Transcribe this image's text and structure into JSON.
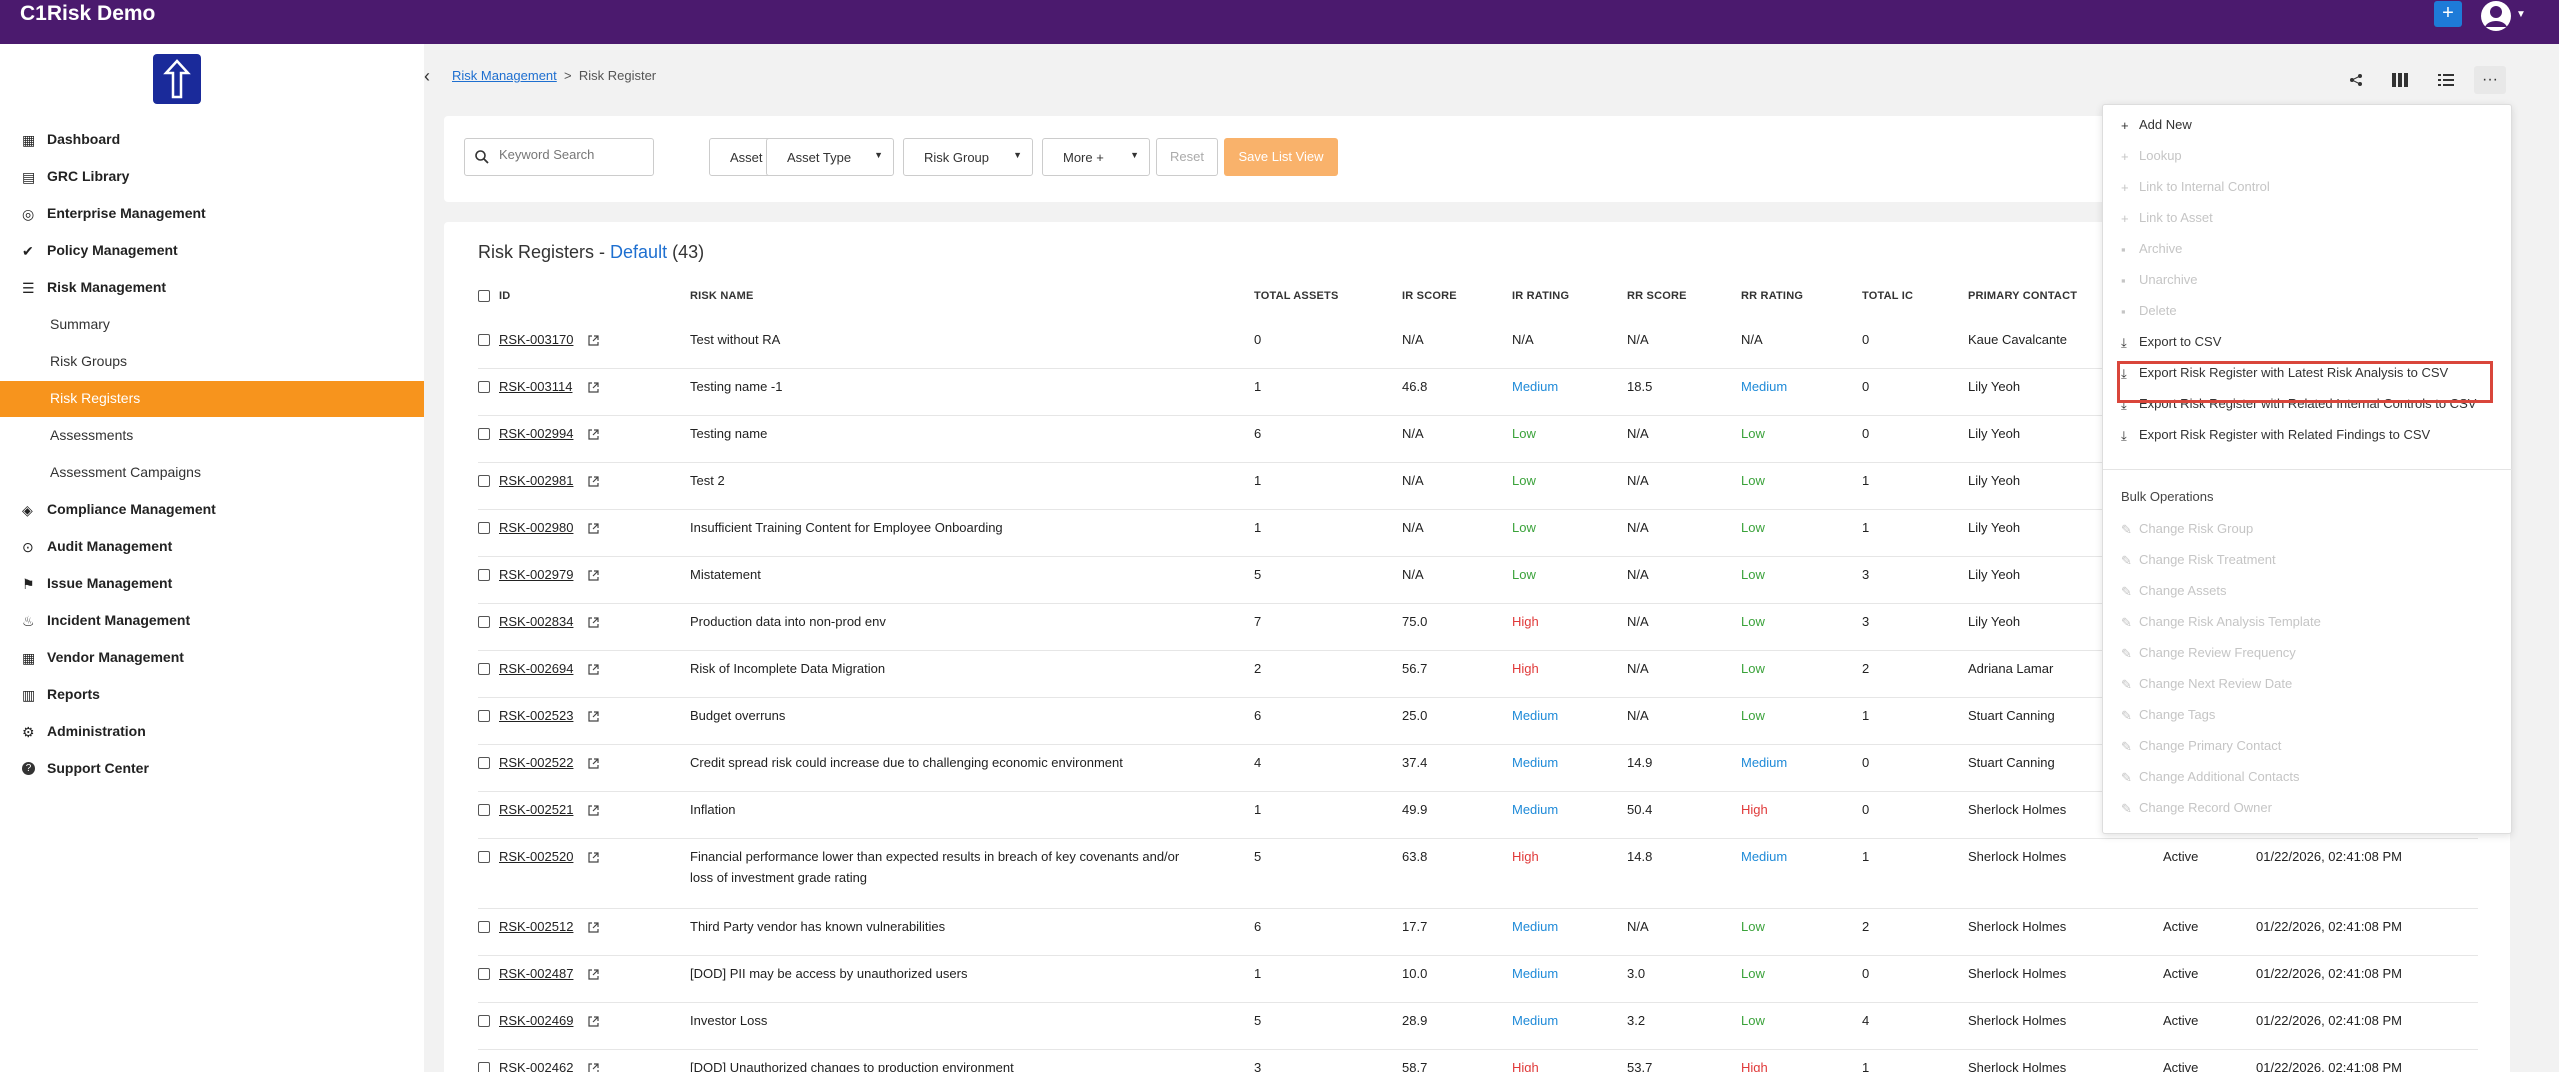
{
  "app": {
    "title": "C1Risk Demo"
  },
  "header": {
    "add_label": "+"
  },
  "sidebar": {
    "nav": [
      {
        "label": "Dashboard"
      },
      {
        "label": "GRC Library"
      },
      {
        "label": "Enterprise Management"
      },
      {
        "label": "Policy Management"
      },
      {
        "label": "Risk Management"
      }
    ],
    "risk_sub": [
      {
        "label": "Summary"
      },
      {
        "label": "Risk Groups"
      },
      {
        "label": "Risk Registers"
      },
      {
        "label": "Assessments"
      },
      {
        "label": "Assessment Campaigns"
      }
    ],
    "nav2": [
      {
        "label": "Compliance Management"
      },
      {
        "label": "Audit Management"
      },
      {
        "label": "Issue Management"
      },
      {
        "label": "Incident Management"
      },
      {
        "label": "Vendor Management"
      },
      {
        "label": "Reports"
      },
      {
        "label": "Administration"
      },
      {
        "label": "Support Center"
      }
    ]
  },
  "breadcrumb": {
    "parent": "Risk Management",
    "separator": ">",
    "current": "Risk Register"
  },
  "filters": {
    "search_placeholder": "Keyword Search",
    "asset": "Asset",
    "asset_type": "Asset Type",
    "risk_group": "Risk Group",
    "more": "More +",
    "reset": "Reset",
    "save_list_view": "Save List View"
  },
  "table": {
    "title_prefix": "Risk Registers - ",
    "view_name": "Default",
    "count": " (43)",
    "headers": {
      "id": "ID",
      "risk_name": "RISK NAME",
      "total_assets": "TOTAL ASSETS",
      "ir_score": "IR SCORE",
      "ir_rating": "IR RATING",
      "rr_score": "RR SCORE",
      "rr_rating": "RR RATING",
      "total_ic": "TOTAL IC",
      "primary_contact": "PRIMARY CONTACT"
    },
    "rows": [
      {
        "id": "RSK-003170",
        "name": "Test without RA",
        "name2": "",
        "assets": "0",
        "ir_score": "N/A",
        "ir_rating": "N/A",
        "rr_score": "N/A",
        "rr_rating": "N/A",
        "ic": "0",
        "contact": "Kaue Cavalcante",
        "status": "",
        "date": ""
      },
      {
        "id": "RSK-003114",
        "name": "Testing name -1",
        "name2": "",
        "assets": "1",
        "ir_score": "46.8",
        "ir_rating": "Medium",
        "rr_score": "18.5",
        "rr_rating": "Medium",
        "ic": "0",
        "contact": "Lily Yeoh",
        "status": "",
        "date": ""
      },
      {
        "id": "RSK-002994",
        "name": "Testing name",
        "name2": "",
        "assets": "6",
        "ir_score": "N/A",
        "ir_rating": "Low",
        "rr_score": "N/A",
        "rr_rating": "Low",
        "ic": "0",
        "contact": "Lily Yeoh",
        "status": "",
        "date": ""
      },
      {
        "id": "RSK-002981",
        "name": "Test 2",
        "name2": "",
        "assets": "1",
        "ir_score": "N/A",
        "ir_rating": "Low",
        "rr_score": "N/A",
        "rr_rating": "Low",
        "ic": "1",
        "contact": "Lily Yeoh",
        "status": "",
        "date": ""
      },
      {
        "id": "RSK-002980",
        "name": "Insufficient Training Content for Employee Onboarding",
        "name2": "",
        "assets": "1",
        "ir_score": "N/A",
        "ir_rating": "Low",
        "rr_score": "N/A",
        "rr_rating": "Low",
        "ic": "1",
        "contact": "Lily Yeoh",
        "status": "",
        "date": ""
      },
      {
        "id": "RSK-002979",
        "name": "Mistatement",
        "name2": "",
        "assets": "5",
        "ir_score": "N/A",
        "ir_rating": "Low",
        "rr_score": "N/A",
        "rr_rating": "Low",
        "ic": "3",
        "contact": "Lily Yeoh",
        "status": "",
        "date": ""
      },
      {
        "id": "RSK-002834",
        "name": "Production data into non-prod env",
        "name2": "",
        "assets": "7",
        "ir_score": "75.0",
        "ir_rating": "High",
        "rr_score": "N/A",
        "rr_rating": "Low",
        "ic": "3",
        "contact": "Lily Yeoh",
        "status": "",
        "date": ""
      },
      {
        "id": "RSK-002694",
        "name": "Risk of Incomplete Data Migration",
        "name2": "",
        "assets": "2",
        "ir_score": "56.7",
        "ir_rating": "High",
        "rr_score": "N/A",
        "rr_rating": "Low",
        "ic": "2",
        "contact": "Adriana Lamar",
        "status": "",
        "date": ""
      },
      {
        "id": "RSK-002523",
        "name": "Budget overruns",
        "name2": "",
        "assets": "6",
        "ir_score": "25.0",
        "ir_rating": "Medium",
        "rr_score": "N/A",
        "rr_rating": "Low",
        "ic": "1",
        "contact": "Stuart Canning",
        "status": "",
        "date": ""
      },
      {
        "id": "RSK-002522",
        "name": "Credit spread risk could increase due to challenging economic environment",
        "name2": "",
        "assets": "4",
        "ir_score": "37.4",
        "ir_rating": "Medium",
        "rr_score": "14.9",
        "rr_rating": "Medium",
        "ic": "0",
        "contact": "Stuart Canning",
        "status": "",
        "date": ""
      },
      {
        "id": "RSK-002521",
        "name": "Inflation",
        "name2": "",
        "assets": "1",
        "ir_score": "49.9",
        "ir_rating": "Medium",
        "rr_score": "50.4",
        "rr_rating": "High",
        "ic": "0",
        "contact": "Sherlock Holmes",
        "status": "",
        "date": ""
      },
      {
        "id": "RSK-002520",
        "name": "Financial performance lower than expected results in breach of key covenants and/or",
        "name2": "loss of investment grade rating",
        "assets": "5",
        "ir_score": "63.8",
        "ir_rating": "High",
        "rr_score": "14.8",
        "rr_rating": "Medium",
        "ic": "1",
        "contact": "Sherlock Holmes",
        "status": "Active",
        "date": "01/22/2026, 02:41:08 PM"
      },
      {
        "id": "RSK-002512",
        "name": "Third Party vendor has known vulnerabilities",
        "name2": "",
        "assets": "6",
        "ir_score": "17.7",
        "ir_rating": "Medium",
        "rr_score": "N/A",
        "rr_rating": "Low",
        "ic": "2",
        "contact": "Sherlock Holmes",
        "status": "Active",
        "date": "01/22/2026, 02:41:08 PM"
      },
      {
        "id": "RSK-002487",
        "name": "[DOD] PII may be access by unauthorized users",
        "name2": "",
        "assets": "1",
        "ir_score": "10.0",
        "ir_rating": "Medium",
        "rr_score": "3.0",
        "rr_rating": "Low",
        "ic": "0",
        "contact": "Sherlock Holmes",
        "status": "Active",
        "date": "01/22/2026, 02:41:08 PM"
      },
      {
        "id": "RSK-002469",
        "name": "Investor Loss",
        "name2": "",
        "assets": "5",
        "ir_score": "28.9",
        "ir_rating": "Medium",
        "rr_score": "3.2",
        "rr_rating": "Low",
        "ic": "4",
        "contact": "Sherlock Holmes",
        "status": "Active",
        "date": "01/22/2026, 02:41:08 PM"
      },
      {
        "id": "RSK-002462",
        "name": "[DOD] Unauthorized changes to production environment",
        "name2": "",
        "assets": "3",
        "ir_score": "58.7",
        "ir_rating": "High",
        "rr_score": "53.7",
        "rr_rating": "High",
        "ic": "1",
        "contact": "Sherlock Holmes",
        "status": "Active",
        "date": "01/22/2026, 02:41:08 PM"
      }
    ]
  },
  "menu": {
    "actions": [
      {
        "label": "Add New",
        "icon": "+"
      },
      {
        "label": "Lookup",
        "icon": "+"
      },
      {
        "label": "Link to Internal Control",
        "icon": "+"
      },
      {
        "label": "Link to Asset",
        "icon": "+"
      },
      {
        "label": "Archive",
        "icon": "▪"
      },
      {
        "label": "Unarchive",
        "icon": "▪"
      },
      {
        "label": "Delete",
        "icon": "▪"
      },
      {
        "label": "Export to CSV",
        "icon": "⤓"
      },
      {
        "label": "Export Risk Register with Latest Risk Analysis to CSV",
        "icon": "⤓"
      },
      {
        "label": "Export Risk Register with Related Internal Controls to CSV",
        "icon": "⤓"
      },
      {
        "label": "Export Risk Register with Related Findings to CSV",
        "icon": "⤓"
      }
    ],
    "bulk_title": "Bulk Operations",
    "bulk": [
      {
        "label": "Change Risk Group"
      },
      {
        "label": "Change Risk Treatment"
      },
      {
        "label": "Change Assets"
      },
      {
        "label": "Change Risk Analysis Template"
      },
      {
        "label": "Change Review Frequency"
      },
      {
        "label": "Change Next Review Date"
      },
      {
        "label": "Change Tags"
      },
      {
        "label": "Change Primary Contact"
      },
      {
        "label": "Change Additional Contacts"
      },
      {
        "label": "Change Record Owner"
      }
    ]
  },
  "colors": {
    "topbar": "#4b1a6e",
    "accent": "#f7941d",
    "link": "#1e6fd0",
    "low": "#3aa23a",
    "medium": "#1e8ad8",
    "high": "#e03a3a"
  }
}
